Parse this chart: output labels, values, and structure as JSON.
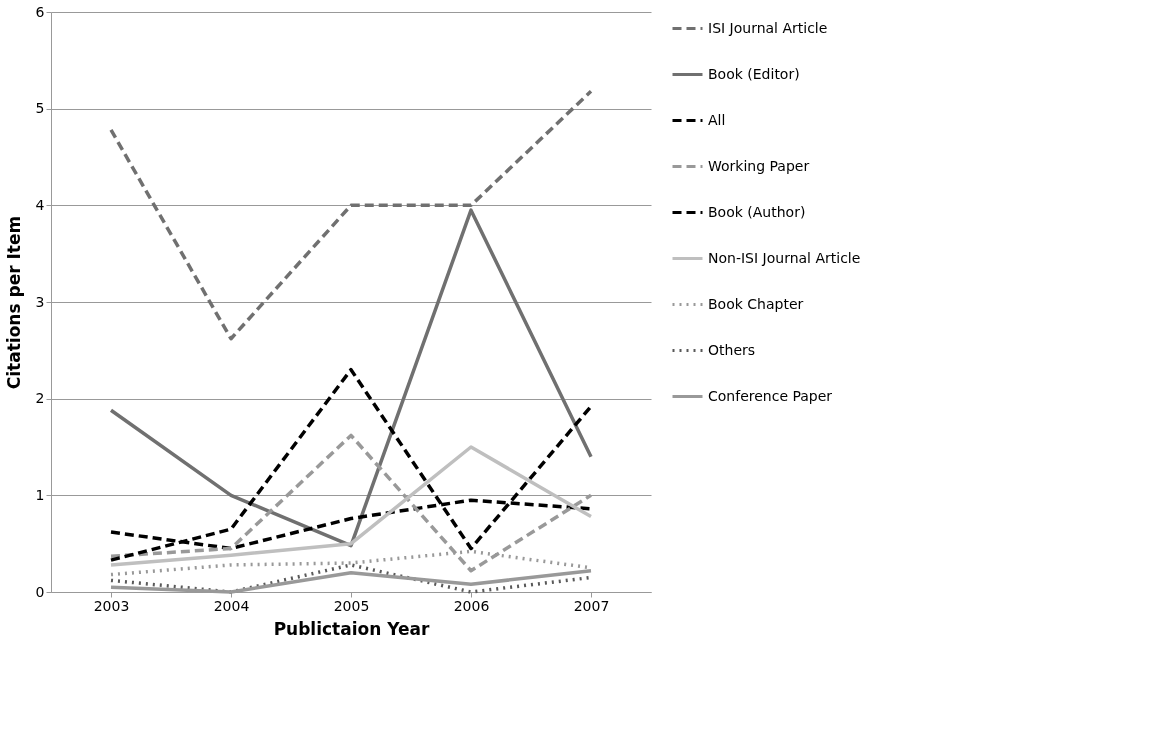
{
  "chart_data": {
    "type": "line",
    "xlabel": "Publictaion Year",
    "ylabel": "Citations per Item",
    "categories": [
      "2003",
      "2004",
      "2005",
      "2006",
      "2007"
    ],
    "ylim": [
      0,
      6
    ],
    "yticks": [
      0,
      1,
      2,
      3,
      4,
      5,
      6
    ],
    "grid": "y",
    "legend": "right",
    "marker": "none",
    "series": [
      {
        "name": "ISI Journal Article",
        "color": "#707070",
        "line_style": "dashed",
        "values": [
          4.78,
          2.62,
          4.0,
          4.0,
          5.18
        ]
      },
      {
        "name": "Book (Editor)",
        "color": "#707070",
        "line_style": "solid",
        "values": [
          1.88,
          1.0,
          0.48,
          3.95,
          1.4
        ]
      },
      {
        "name": "All",
        "color": "#000000",
        "line_style": "dashed",
        "values": [
          0.62,
          0.45,
          0.76,
          0.95,
          0.86
        ]
      },
      {
        "name": "Working Paper",
        "color": "#999999",
        "line_style": "dashed",
        "values": [
          0.37,
          0.45,
          1.62,
          0.22,
          1.0
        ]
      },
      {
        "name": "Book (Author)",
        "color": "#000000",
        "line_style": "dashed",
        "values": [
          0.33,
          0.65,
          2.3,
          0.45,
          1.92
        ]
      },
      {
        "name": "Non-ISI Journal Article",
        "color": "#bfbfbf",
        "line_style": "solid",
        "values": [
          0.28,
          0.38,
          0.5,
          1.5,
          0.78
        ]
      },
      {
        "name": "Book Chapter",
        "color": "#999999",
        "line_style": "dotted",
        "values": [
          0.18,
          0.28,
          0.3,
          0.42,
          0.25
        ]
      },
      {
        "name": "Others",
        "color": "#595959",
        "line_style": "dotted",
        "values": [
          0.12,
          0.0,
          0.28,
          0.0,
          0.15
        ]
      },
      {
        "name": "Conference Paper",
        "color": "#999999",
        "line_style": "solid",
        "values": [
          0.05,
          0.0,
          0.2,
          0.08,
          0.22
        ]
      }
    ]
  }
}
